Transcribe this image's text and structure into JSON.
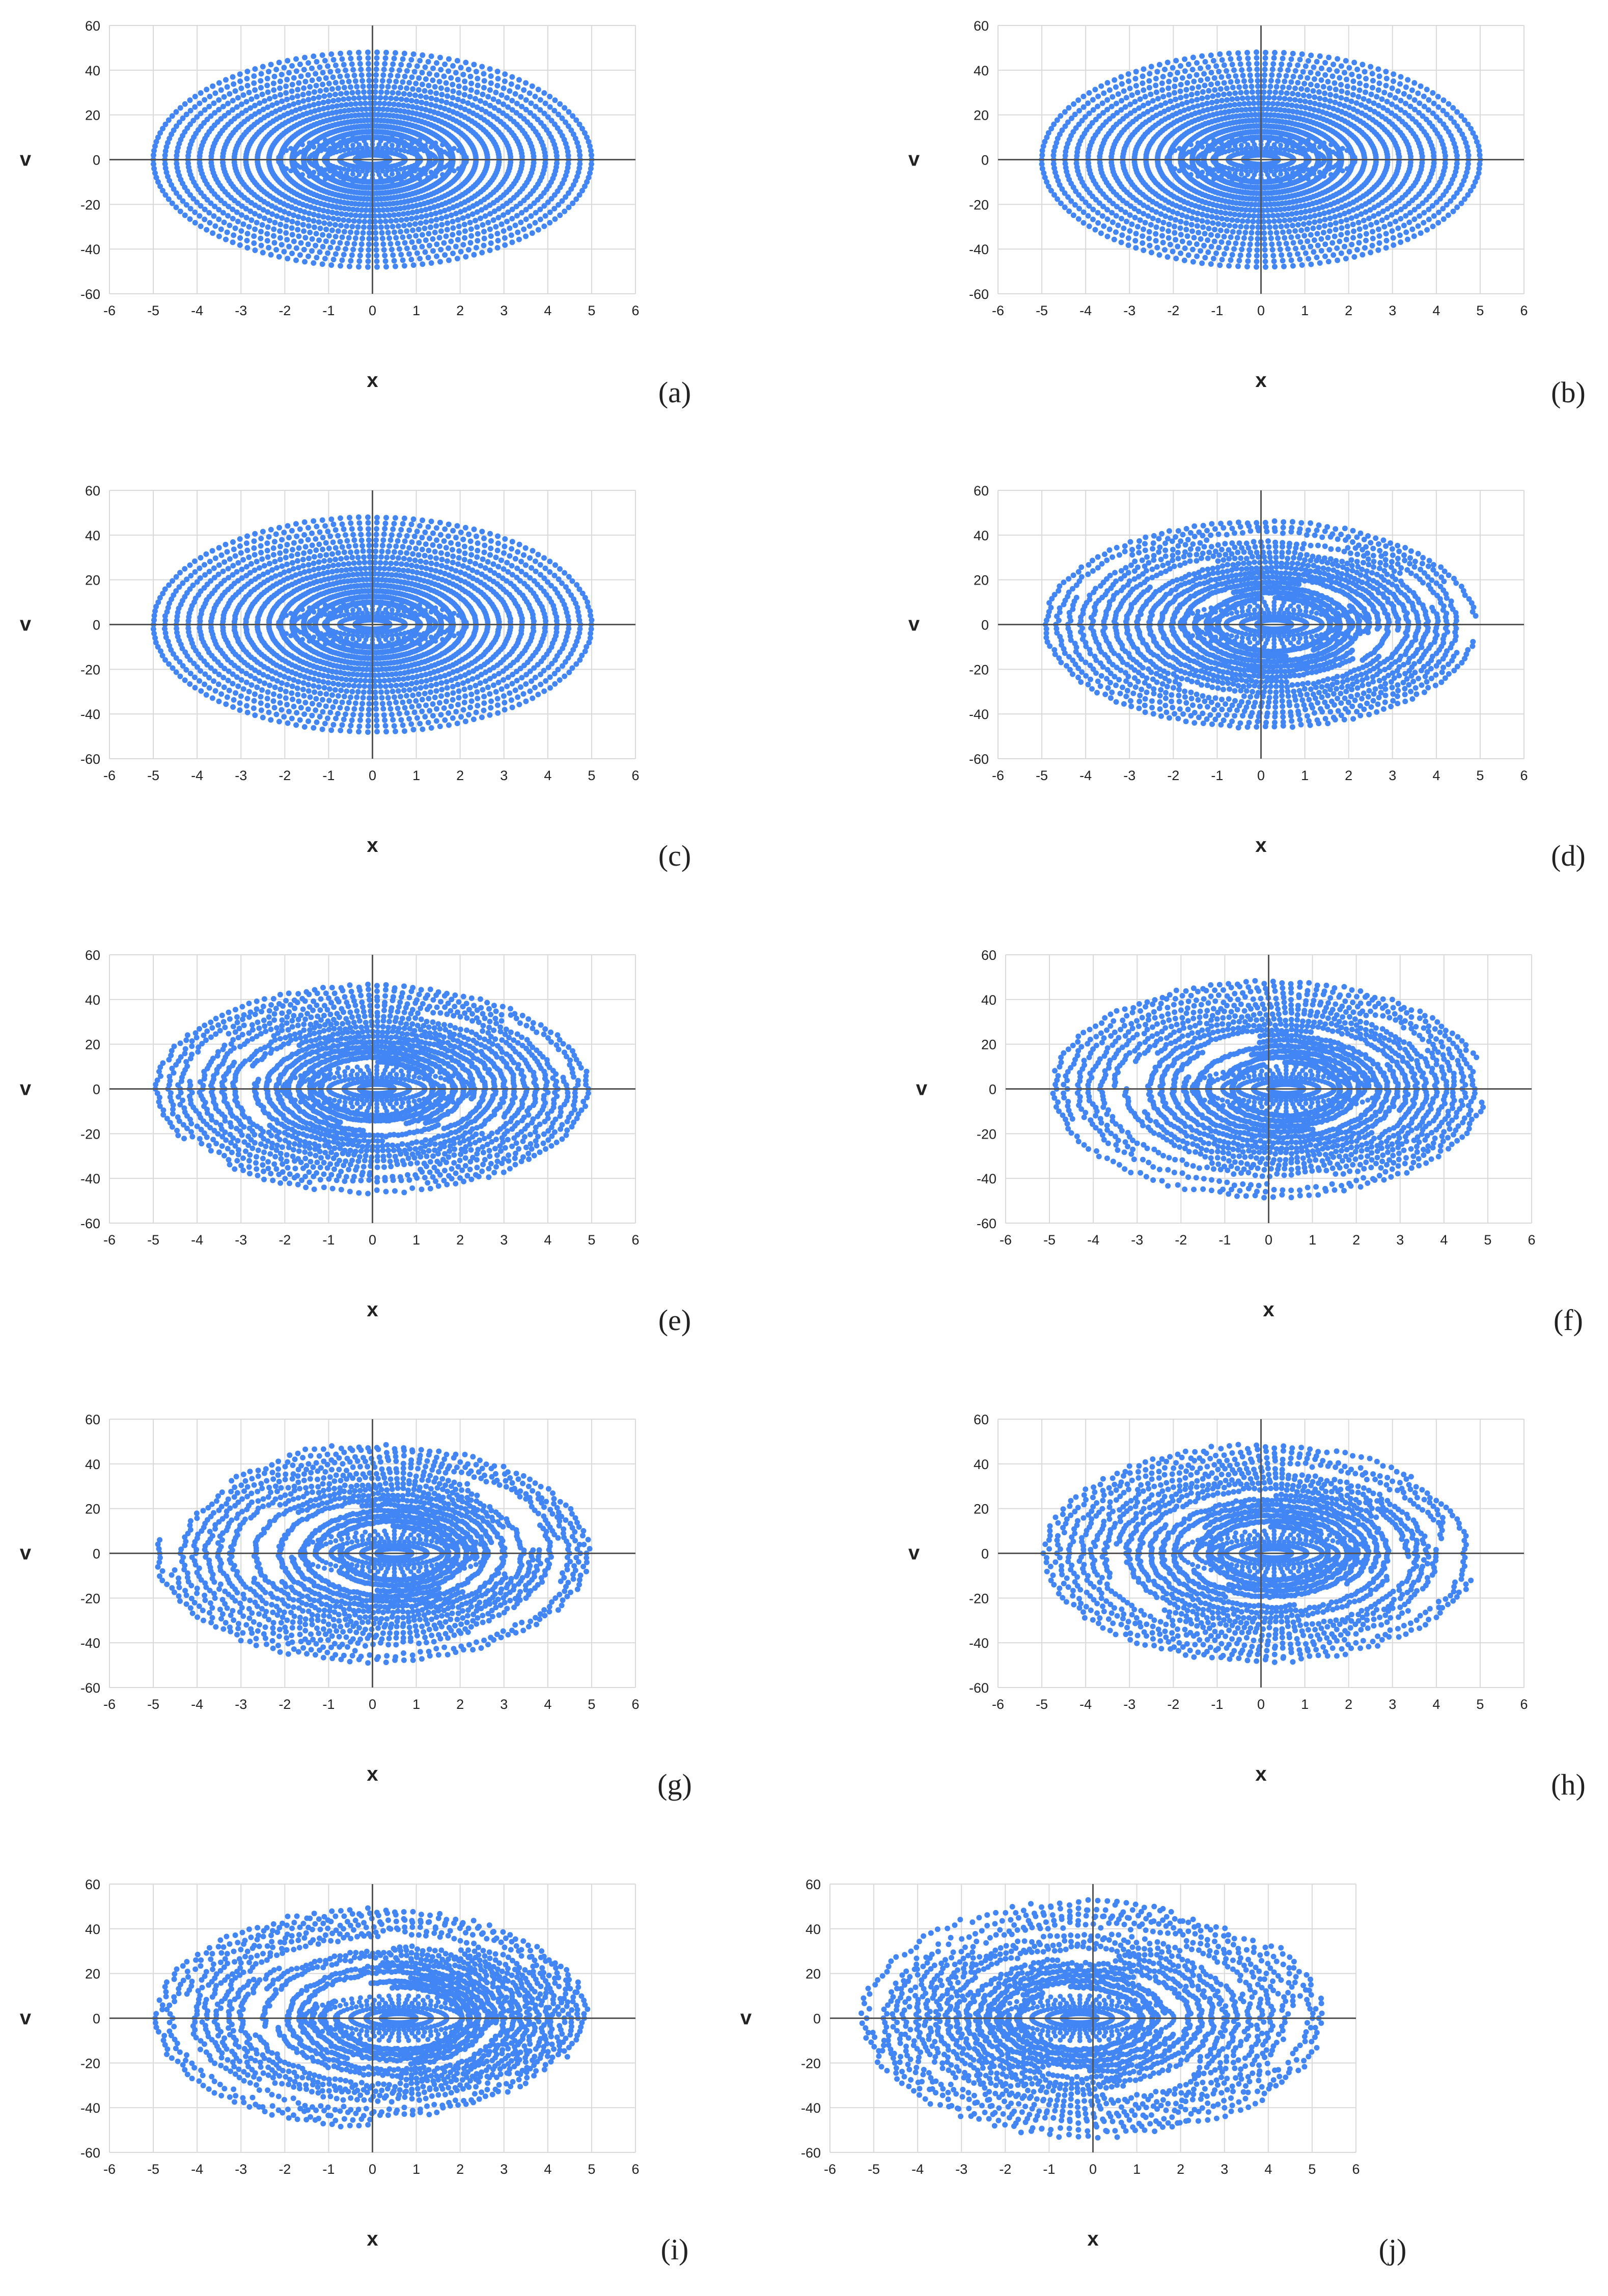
{
  "figure": {
    "panels": [
      {
        "id": "a",
        "caption": "(a)",
        "cx": 0.0,
        "inner": 10,
        "outer": 48,
        "width_x": 5.0,
        "cutoff": 0.0,
        "chaos": 0.0,
        "seed": 11
      },
      {
        "id": "b",
        "caption": "(b)",
        "cx": 0.0,
        "inner": 10,
        "outer": 48,
        "width_x": 5.0,
        "cutoff": 0.0,
        "chaos": 0.05,
        "seed": 17
      },
      {
        "id": "c",
        "caption": "(c)",
        "cx": 0.0,
        "inner": 10,
        "outer": 48,
        "width_x": 5.0,
        "cutoff": 0.0,
        "chaos": 0.1,
        "seed": 23
      },
      {
        "id": "d",
        "caption": "(d)",
        "cx": 0.3,
        "inner": 12,
        "outer": 46,
        "width_x": 4.9,
        "cutoff": 0.3,
        "chaos": 0.35,
        "seed": 31
      },
      {
        "id": "e",
        "caption": "(e)",
        "cx": 0.1,
        "inner": 12,
        "outer": 46,
        "width_x": 4.9,
        "cutoff": 0.4,
        "chaos": 0.45,
        "seed": 41
      },
      {
        "id": "f",
        "caption": "(f)",
        "cx": 0.4,
        "inner": 12,
        "outer": 48,
        "width_x": 4.9,
        "cutoff": 0.5,
        "chaos": 0.5,
        "seed": 53
      },
      {
        "id": "g",
        "caption": "(g)",
        "cx": 0.5,
        "inner": 12,
        "outer": 48,
        "width_x": 4.9,
        "cutoff": 0.6,
        "chaos": 0.55,
        "seed": 61
      },
      {
        "id": "h",
        "caption": "(h)",
        "cx": 0.3,
        "inner": 12,
        "outer": 48,
        "width_x": 4.9,
        "cutoff": 0.6,
        "chaos": 0.6,
        "seed": 71
      },
      {
        "id": "i",
        "caption": "(i)",
        "cx": 0.6,
        "inner": 14,
        "outer": 48,
        "width_x": 4.9,
        "cutoff": 0.65,
        "chaos": 0.75,
        "seed": 83
      },
      {
        "id": "j",
        "caption": "(j)",
        "cx": -0.3,
        "inner": 14,
        "outer": 52,
        "width_x": 5.2,
        "cutoff": 0.6,
        "chaos": 0.85,
        "seed": 97
      }
    ],
    "color": "#4285F4"
  },
  "chart_data": {
    "type": "scatter",
    "subplots": 10,
    "xlabel": "x",
    "ylabel": "v",
    "xlim": [
      -6,
      6
    ],
    "ylim": [
      -60,
      60
    ],
    "xticks": [
      "-6",
      "-5",
      "-4",
      "-3",
      "-2",
      "-1",
      "0",
      "1",
      "2",
      "3",
      "4",
      "5",
      "6"
    ],
    "yticks": [
      "60",
      "40",
      "20",
      "0",
      "-20",
      "-40",
      "-60"
    ],
    "grid": true,
    "legend": "none"
  }
}
